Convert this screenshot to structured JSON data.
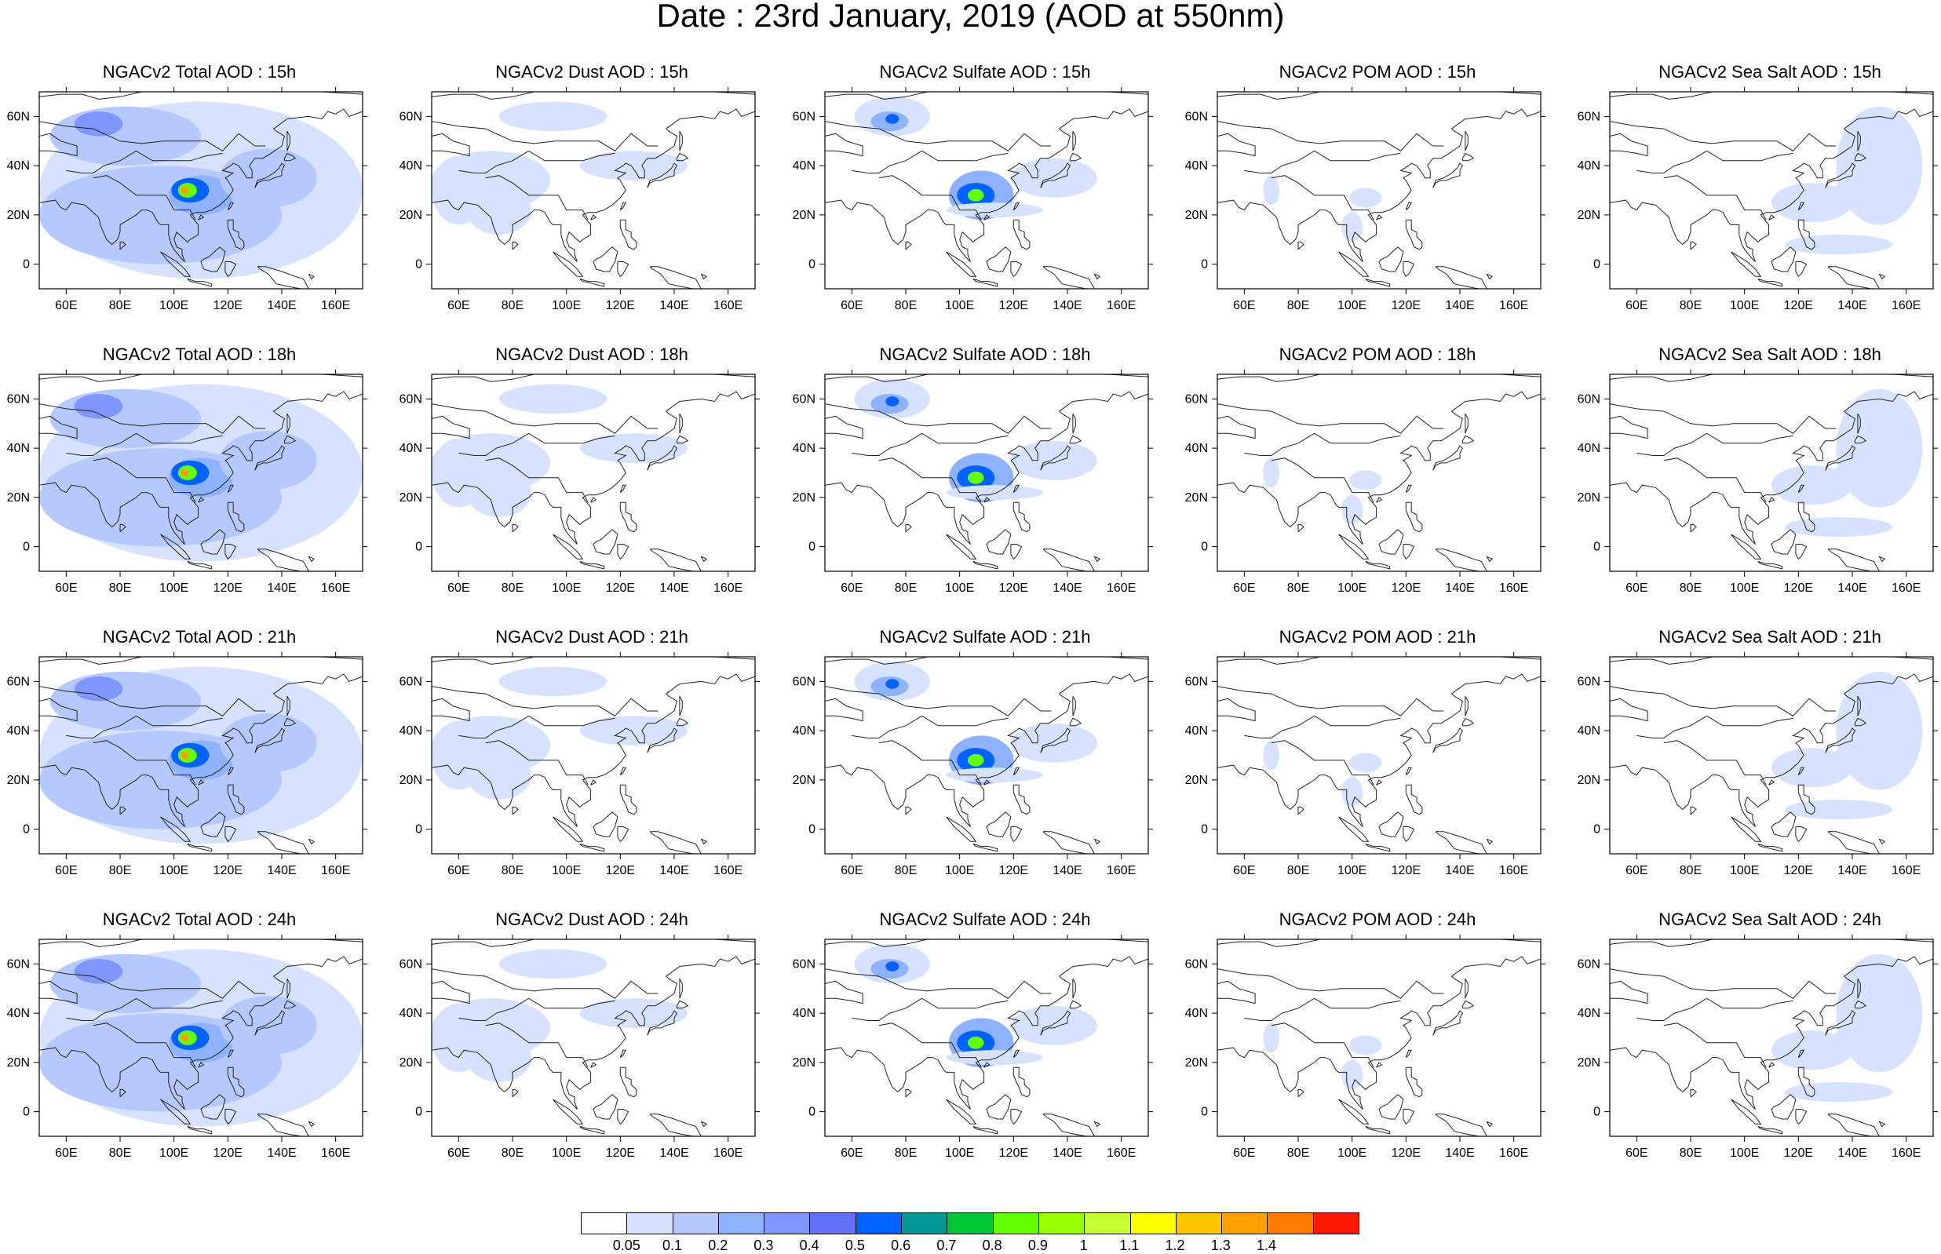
{
  "title": "Date : 23rd January, 2019 (AOD at 550nm)",
  "lon_ticks": [
    "60E",
    "80E",
    "100E",
    "120E",
    "140E",
    "160E"
  ],
  "lat_ticks": [
    "60N",
    "40N",
    "20N",
    "0"
  ],
  "panels": [
    {
      "title": "NGACv2 Total AOD : 15h",
      "species": "total",
      "hour": "15h"
    },
    {
      "title": "NGACv2 Dust AOD : 15h",
      "species": "dust",
      "hour": "15h"
    },
    {
      "title": "NGACv2 Sulfate AOD : 15h",
      "species": "sulfate",
      "hour": "15h"
    },
    {
      "title": "NGACv2 POM AOD : 15h",
      "species": "pom",
      "hour": "15h"
    },
    {
      "title": "NGACv2 Sea Salt AOD : 15h",
      "species": "seasalt",
      "hour": "15h"
    },
    {
      "title": "NGACv2 Total AOD : 18h",
      "species": "total",
      "hour": "18h"
    },
    {
      "title": "NGACv2 Dust AOD : 18h",
      "species": "dust",
      "hour": "18h"
    },
    {
      "title": "NGACv2 Sulfate AOD : 18h",
      "species": "sulfate",
      "hour": "18h"
    },
    {
      "title": "NGACv2 POM AOD : 18h",
      "species": "pom",
      "hour": "18h"
    },
    {
      "title": "NGACv2 Sea Salt AOD : 18h",
      "species": "seasalt",
      "hour": "18h"
    },
    {
      "title": "NGACv2 Total AOD : 21h",
      "species": "total",
      "hour": "21h"
    },
    {
      "title": "NGACv2 Dust AOD : 21h",
      "species": "dust",
      "hour": "21h"
    },
    {
      "title": "NGACv2 Sulfate AOD : 21h",
      "species": "sulfate",
      "hour": "21h"
    },
    {
      "title": "NGACv2 POM AOD : 21h",
      "species": "pom",
      "hour": "21h"
    },
    {
      "title": "NGACv2 Sea Salt AOD : 21h",
      "species": "seasalt",
      "hour": "21h"
    },
    {
      "title": "NGACv2 Total AOD : 24h",
      "species": "total",
      "hour": "24h"
    },
    {
      "title": "NGACv2 Dust AOD : 24h",
      "species": "dust",
      "hour": "24h"
    },
    {
      "title": "NGACv2 Sulfate AOD : 24h",
      "species": "sulfate",
      "hour": "24h"
    },
    {
      "title": "NGACv2 POM AOD : 24h",
      "species": "pom",
      "hour": "24h"
    },
    {
      "title": "NGACv2 Sea Salt  AOD : 24h",
      "species": "seasalt",
      "hour": "24h"
    }
  ],
  "colorbar": {
    "labels": [
      "0.05",
      "0.1",
      "0.2",
      "0.3",
      "0.4",
      "0.5",
      "0.6",
      "0.7",
      "0.8",
      "0.9",
      "1",
      "1.1",
      "1.2",
      "1.3",
      "1.4"
    ],
    "colors": [
      "#ffffff",
      "#d6e2ff",
      "#b5c9ff",
      "#8eb2ff",
      "#7f96ff",
      "#6370f7",
      "#0063ff",
      "#009696",
      "#00c633",
      "#63ff00",
      "#96ff00",
      "#c6ff33",
      "#ffff00",
      "#ffc600",
      "#ffa000",
      "#ff7c00",
      "#ff1900"
    ]
  }
}
